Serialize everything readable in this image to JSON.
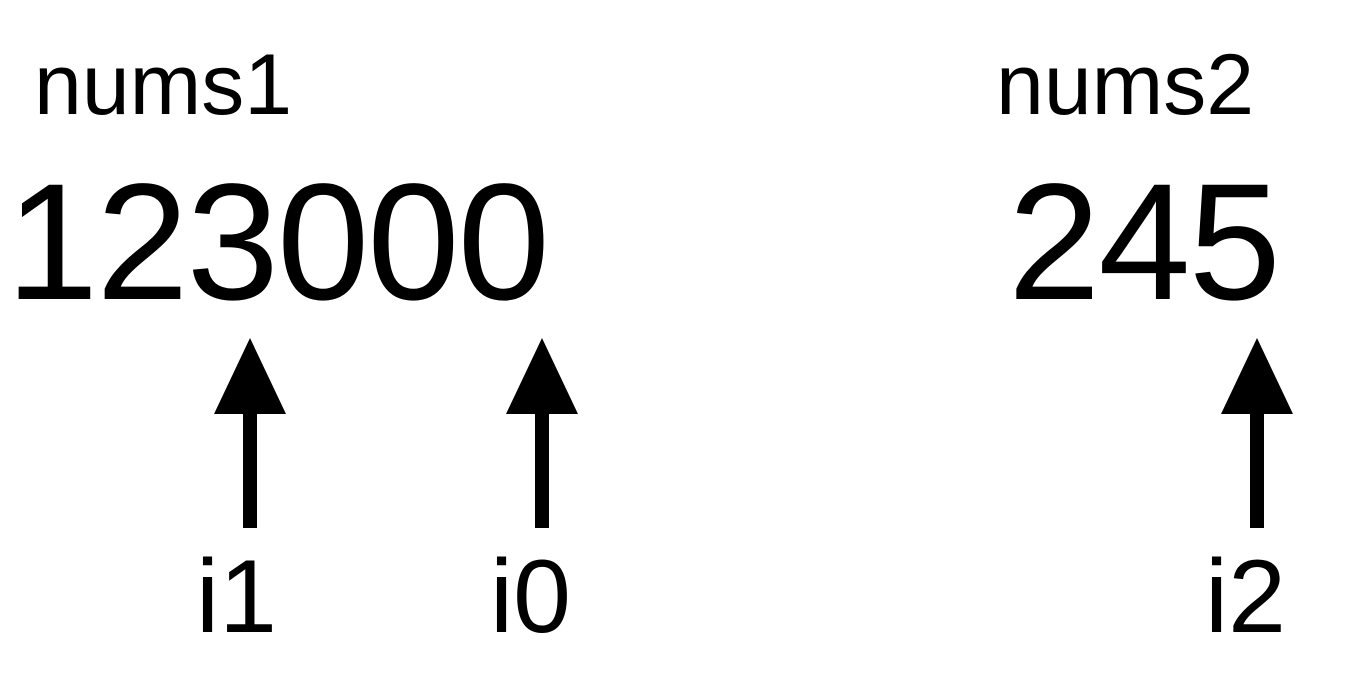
{
  "arrays": [
    {
      "label": "nums1",
      "digits": "123000"
    },
    {
      "label": "nums2",
      "digits": "245"
    }
  ],
  "pointers": [
    {
      "name": "i1",
      "array": "nums1",
      "index": 2
    },
    {
      "name": "i0",
      "array": "nums1",
      "index": 5
    },
    {
      "name": "i2",
      "array": "nums2",
      "index": 2
    }
  ]
}
